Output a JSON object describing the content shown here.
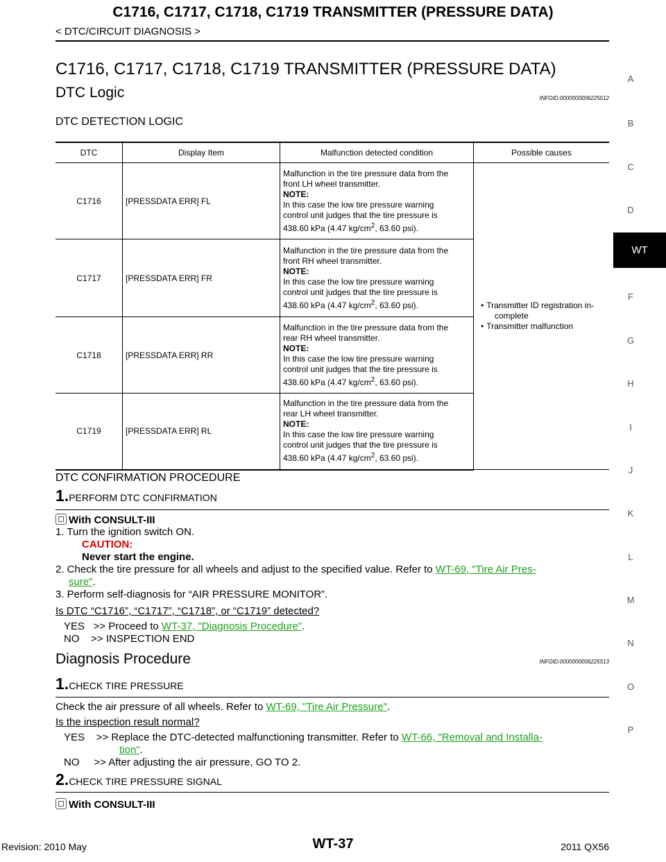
{
  "header": {
    "title": "C1716, C1717, C1718, C1719 TRANSMITTER (PRESSURE DATA)",
    "breadcrumb": "< DTC/CIRCUIT DIAGNOSIS >"
  },
  "section_title": "C1716, C1717, C1718, C1719 TRANSMITTER (PRESSURE DATA)",
  "dtc_logic": {
    "heading": "DTC Logic",
    "infoid": "INFOID:0000000006225512"
  },
  "detection_logic_heading": "DTC DETECTION LOGIC",
  "table": {
    "headers": [
      "DTC",
      "Display Item",
      "Malfunction detected condition",
      "Possible causes"
    ],
    "rows": [
      {
        "dtc": "C1716",
        "item": "[PRESSDATA ERR] FL",
        "cond_line1": "Malfunction in the tire pressure data from the",
        "cond_line2": "front LH wheel transmitter."
      },
      {
        "dtc": "C1717",
        "item": "[PRESSDATA ERR] FR",
        "cond_line1": "Malfunction in the tire pressure data from the",
        "cond_line2": "front RH wheel transmitter."
      },
      {
        "dtc": "C1718",
        "item": "[PRESSDATA ERR] RR",
        "cond_line1": "Malfunction in the tire pressure data from the",
        "cond_line2": "rear RH wheel transmitter."
      },
      {
        "dtc": "C1719",
        "item": "[PRESSDATA ERR] RL",
        "cond_line1": "Malfunction in the tire pressure data from the",
        "cond_line2": "rear LH wheel transmitter."
      }
    ],
    "note_label": "NOTE:",
    "note_line1": "In this case the low tire pressure warning",
    "note_line2": "control unit judges that the tire pressure is",
    "note_value_pre": "438.60 kPa (4.47 kg/cm",
    "note_value_sup": "2",
    "note_value_post": ", 63.60 psi).",
    "causes": [
      "Transmitter ID registration in-complete",
      "Transmitter malfunction"
    ],
    "cause1_a": "Transmitter ID registration in-",
    "cause1_b": "complete"
  },
  "confirmation": {
    "heading": "DTC CONFIRMATION PROCEDURE",
    "step1_num": "1.",
    "step1_title": "PERFORM DTC CONFIRMATION",
    "with_consult": "With CONSULT-III",
    "item1": "1. Turn the ignition switch ON.",
    "caution_label": "CAUTION:",
    "caution_text": "Never start the engine.",
    "item2_pre": "2. Check the tire pressure for all wheels and adjust to the specified value. Refer to ",
    "item2_link_a": "WT-69, \"Tire Air Pres-",
    "item2_link_b": "sure\"",
    "item2_post": ".",
    "item3": "3. Perform self-diagnosis for “AIR PRESSURE MONITOR”.",
    "question": "Is DTC “C1716”, “C1717”, “C1718”, or “C1719” detected?",
    "yes_pre": "YES   >> Proceed to ",
    "yes_link": "WT-37, \"Diagnosis Procedure\"",
    "yes_post": ".",
    "no": "NO    >> INSPECTION END"
  },
  "diagnosis": {
    "heading": "Diagnosis Procedure",
    "infoid": "INFOID:0000000006225513",
    "step1_num": "1.",
    "step1_title": "CHECK TIRE PRESSURE",
    "check_pre": "Check the air pressure of all wheels. Refer to ",
    "check_link": "WT-69, \"Tire Air Pressure\"",
    "check_post": ".",
    "question": "Is the inspection result normal?",
    "yes_pre": "YES    >> Replace the DTC-detected malfunctioning transmitter. Refer to ",
    "yes_link_a": "WT-66, \"Removal and Installa-",
    "yes_link_b": "tion\"",
    "yes_post": ".",
    "no": "NO     >> After adjusting the air pressure, GO TO 2.",
    "step2_num": "2.",
    "step2_title": "CHECK TIRE PRESSURE SIGNAL",
    "with_consult": "With CONSULT-III"
  },
  "side_index": [
    "A",
    "B",
    "C",
    "D",
    "WT",
    "F",
    "G",
    "H",
    "I",
    "J",
    "K",
    "L",
    "M",
    "N",
    "O",
    "P"
  ],
  "footer": {
    "revision": "Revision: 2010 May",
    "page": "WT-37",
    "model": "2011 QX56"
  }
}
